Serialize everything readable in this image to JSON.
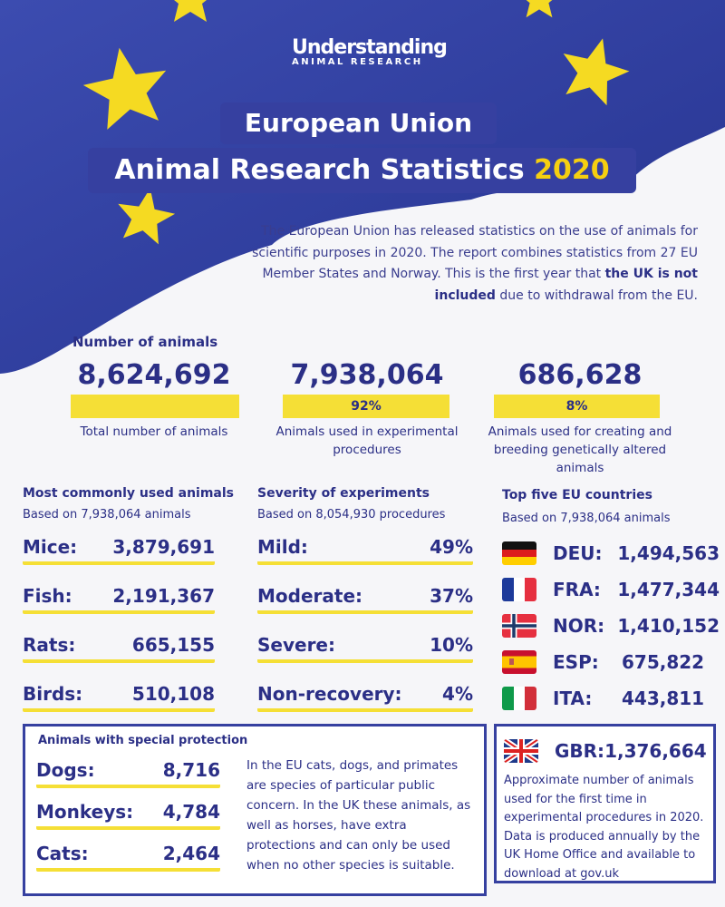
{
  "brand": {
    "line1": "Understanding",
    "line2": "ANIMAL RESEARCH"
  },
  "title": {
    "line1": "European Union",
    "line2": "Animal Research Statistics",
    "year": "2020"
  },
  "intro": {
    "text": "The European Union has released statistics on the use of animals for scientific purposes in 2020. The report combines statistics from 27 EU Member States and Norway. This is the first year that",
    "bold": "the UK is not included",
    "tail": "due to withdrawal from the EU."
  },
  "numbers": {
    "heading": "Number of animals",
    "items": [
      {
        "value": "8,624,692",
        "bar": "",
        "caption": "Total number of animals"
      },
      {
        "value": "7,938,064",
        "bar": "92%",
        "caption": "Animals used in experimental procedures"
      },
      {
        "value": "686,628",
        "bar": "8%",
        "caption": "Animals used for creating and breeding genetically altered animals"
      }
    ]
  },
  "animals": {
    "heading": "Most commonly used animals",
    "sub": "Based on 7,938,064 animals",
    "items": [
      {
        "label": "Mice:",
        "value": "3,879,691"
      },
      {
        "label": "Fish:",
        "value": "2,191,367"
      },
      {
        "label": "Rats:",
        "value": "665,155"
      },
      {
        "label": "Birds:",
        "value": "510,108"
      }
    ]
  },
  "severity": {
    "heading": "Severity of experiments",
    "sub": "Based on 8,054,930 procedures",
    "items": [
      {
        "label": "Mild:",
        "value": "49%"
      },
      {
        "label": "Moderate:",
        "value": "37%"
      },
      {
        "label": "Severe:",
        "value": "10%"
      },
      {
        "label": "Non-recovery:",
        "value": "4%"
      }
    ]
  },
  "countries": {
    "heading": "Top five EU countries",
    "sub": "Based on 7,938,064 animals",
    "items": [
      {
        "code": "DEU:",
        "value": "1,494,563",
        "flag": "germany-flag-icon"
      },
      {
        "code": "FRA:",
        "value": "1,477,344",
        "flag": "france-flag-icon"
      },
      {
        "code": "NOR:",
        "value": "1,410,152",
        "flag": "norway-flag-icon"
      },
      {
        "code": "ESP:",
        "value": "675,822",
        "flag": "spain-flag-icon"
      },
      {
        "code": "ITA:",
        "value": "443,811",
        "flag": "italy-flag-icon"
      }
    ]
  },
  "special": {
    "heading": "Animals with special protection",
    "items": [
      {
        "label": "Dogs:",
        "value": "8,716"
      },
      {
        "label": "Monkeys:",
        "value": "4,784"
      },
      {
        "label": "Cats:",
        "value": "2,464"
      }
    ],
    "note": "In the EU cats, dogs, and primates are species of particular public concern. In the UK these animals, as well as horses, have extra protections and can only be used when no other species is suitable."
  },
  "uk": {
    "code": "GBR:",
    "value": "1,376,664",
    "note": "Approximate number of animals used for the first time in experimental procedures in 2020. Data is produced annually by the UK Home Office and available to download at gov.uk"
  },
  "colors": {
    "navy": "#2b2f86",
    "yellow": "#f5df36",
    "flag_blue": "#3640a0"
  }
}
